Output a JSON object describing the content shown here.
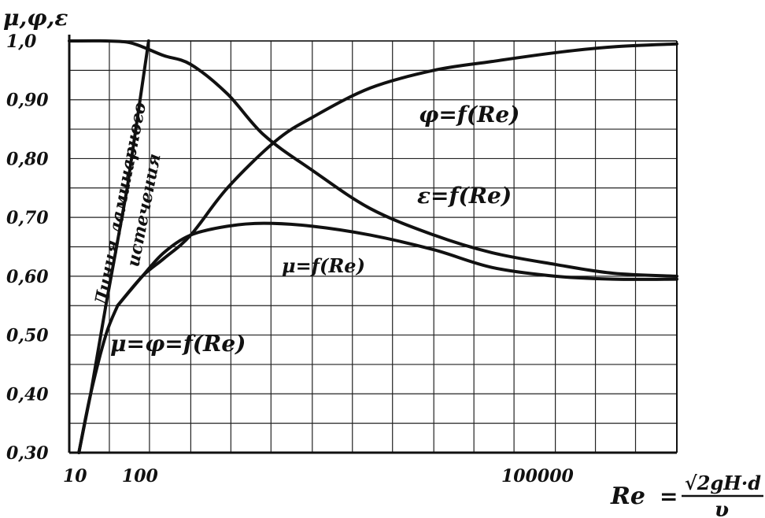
{
  "chart_data": {
    "type": "line",
    "ylabel": "μ,φ,ε",
    "xlabel": "Re",
    "xlabel_formula_numerator": "√2gH·d",
    "xlabel_formula_denominator": "υ",
    "ylim": [
      0.3,
      1.0
    ],
    "x_scale": "log",
    "xlim": [
      10,
      1000000
    ],
    "x_ticks": [
      "10",
      "100",
      "100000"
    ],
    "y_ticks": [
      "0,30",
      "0,40",
      "0,50",
      "0,60",
      "0,70",
      "0,80",
      "0,90",
      "1,0"
    ],
    "grid": true,
    "series": [
      {
        "name": "φ=f(Re)",
        "x": [
          25,
          40,
          60,
          100,
          200,
          500,
          1000,
          3000,
          10000,
          30000,
          100000,
          300000,
          1000000
        ],
        "values": [
          0.55,
          0.6,
          0.63,
          0.67,
          0.75,
          0.83,
          0.87,
          0.92,
          0.95,
          0.965,
          0.98,
          0.99,
          0.995
        ]
      },
      {
        "name": "ε=f(Re)",
        "x": [
          10,
          20,
          30,
          40,
          60,
          100,
          200,
          400,
          1000,
          3000,
          10000,
          30000,
          100000,
          300000,
          1000000
        ],
        "values": [
          1.0,
          1.0,
          0.998,
          0.99,
          0.975,
          0.96,
          0.91,
          0.84,
          0.78,
          0.715,
          0.67,
          0.64,
          0.62,
          0.605,
          0.6
        ]
      },
      {
        "name": "μ=f(Re)",
        "x": [
          25,
          40,
          60,
          100,
          200,
          400,
          1000,
          3000,
          10000,
          30000,
          100000,
          300000,
          1000000
        ],
        "values": [
          0.55,
          0.6,
          0.64,
          0.67,
          0.685,
          0.69,
          0.685,
          0.67,
          0.645,
          0.615,
          0.6,
          0.595,
          0.595
        ]
      },
      {
        "name": "μ=φ=f(Re)",
        "x": [
          12,
          15,
          20,
          25
        ],
        "values": [
          0.3,
          0.4,
          0.5,
          0.55
        ]
      },
      {
        "name": "Линия ламинарного истечения",
        "x": [
          12,
          15,
          20,
          30,
          45
        ],
        "values": [
          0.3,
          0.4,
          0.55,
          0.75,
          1.0
        ]
      }
    ],
    "annotations": [
      "φ=f(Re)",
      "ε=f(Re)",
      "μ=f(Re)",
      "μ=φ=f(Re)",
      "Линия ламинарного",
      "истечения"
    ]
  }
}
